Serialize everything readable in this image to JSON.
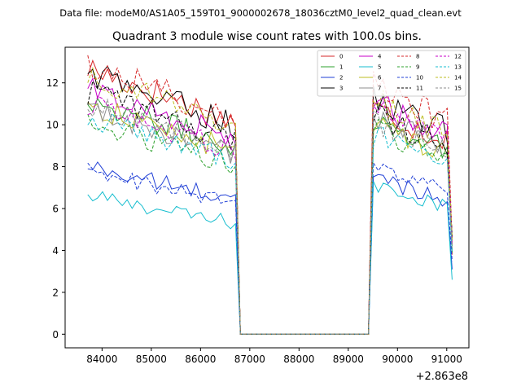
{
  "suptitle": "Data file: modeM0/AS1A05_159T01_9000002678_18036cztM0_level2_quad_clean.evt",
  "chart_data": {
    "type": "line",
    "title": "Quadrant 3 module wise count rates with 100.0s bins.",
    "xlabel": "",
    "ylabel": "",
    "x_offset_label": "+2.863e8",
    "x_offset": 286300000,
    "xlim": [
      83250,
      91450
    ],
    "ylim": [
      -0.65,
      13.7
    ],
    "xticks": [
      84000,
      85000,
      86000,
      87000,
      88000,
      89000,
      90000,
      91000
    ],
    "xtick_labels": [
      "84000",
      "85000",
      "86000",
      "87000",
      "88000",
      "89000",
      "90000",
      "91000"
    ],
    "yticks": [
      0,
      2,
      4,
      6,
      8,
      10,
      12
    ],
    "ytick_labels": [
      "0",
      "2",
      "4",
      "6",
      "8",
      "10",
      "12"
    ],
    "grid": false,
    "legend": "top-right",
    "segments": [
      {
        "x_start": 83710,
        "x_end": 86710,
        "kind": "data"
      },
      {
        "x_start": 86810,
        "x_end": 89410,
        "kind": "zero"
      },
      {
        "x_start": 89410,
        "x_end": 91110,
        "kind": "data"
      }
    ],
    "series": [
      {
        "name": "0",
        "color": "#d62728",
        "dash": "solid",
        "seg1": 12.7,
        "seg2": 10.9,
        "end": 3.8
      },
      {
        "name": "1",
        "color": "#2ca02c",
        "dash": "solid",
        "seg1": 11.2,
        "seg2": 10.4,
        "end": 3.9
      },
      {
        "name": "2",
        "color": "#1f3fd6",
        "dash": "solid",
        "seg1": 8.0,
        "seg2": 7.6,
        "end": 3.1
      },
      {
        "name": "3",
        "color": "#000000",
        "dash": "solid",
        "seg1": 12.5,
        "seg2": 11.4,
        "end": 4.6
      },
      {
        "name": "4",
        "color": "#c800c8",
        "dash": "solid",
        "seg1": 11.7,
        "seg2": 11.2,
        "end": 4.3
      },
      {
        "name": "5",
        "color": "#17becf",
        "dash": "solid",
        "seg1": 6.6,
        "seg2": 7.2,
        "end": 2.6
      },
      {
        "name": "6",
        "color": "#bcbd22",
        "dash": "solid",
        "seg1": 10.9,
        "seg2": 10.2,
        "end": 4.2
      },
      {
        "name": "7",
        "color": "#8c8c8c",
        "dash": "solid",
        "seg1": 10.7,
        "seg2": 10.5,
        "end": 4.0
      },
      {
        "name": "8",
        "color": "#d62728",
        "dash": "dashed",
        "seg1": 12.9,
        "seg2": 12.0,
        "end": 4.5
      },
      {
        "name": "9",
        "color": "#2ca02c",
        "dash": "dashed",
        "seg1": 10.1,
        "seg2": 9.9,
        "end": 4.1
      },
      {
        "name": "10",
        "color": "#1f3fd6",
        "dash": "dashed",
        "seg1": 7.8,
        "seg2": 8.0,
        "end": 3.5
      },
      {
        "name": "11",
        "color": "#000000",
        "dash": "dashed",
        "seg1": 11.6,
        "seg2": 10.6,
        "end": 4.7
      },
      {
        "name": "12",
        "color": "#c800c8",
        "dash": "dashed",
        "seg1": 11.0,
        "seg2": 10.9,
        "end": 4.3
      },
      {
        "name": "13",
        "color": "#17becf",
        "dash": "dashed",
        "seg1": 10.4,
        "seg2": 9.6,
        "end": 3.9
      },
      {
        "name": "14",
        "color": "#bcbd22",
        "dash": "dashed",
        "seg1": 12.4,
        "seg2": 11.3,
        "end": 4.5
      },
      {
        "name": "15",
        "color": "#8c8c8c",
        "dash": "dashed",
        "seg1": 11.0,
        "seg2": 10.3,
        "end": 4.2
      }
    ]
  }
}
